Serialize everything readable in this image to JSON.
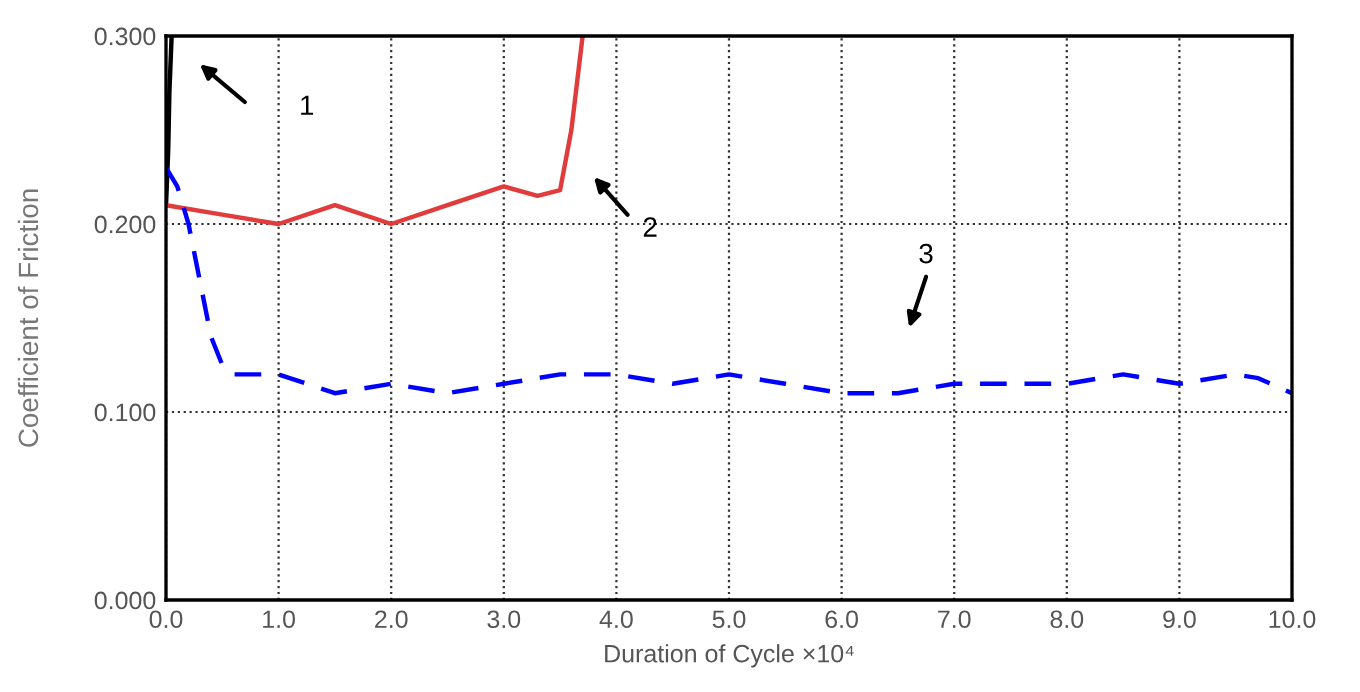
{
  "chart_data": {
    "type": "line",
    "xlabel": "Duration of Cycle ×10⁴",
    "ylabel": "Coefficient of Friction",
    "xlim": [
      0,
      10
    ],
    "ylim": [
      0,
      0.3
    ],
    "xticks": [
      {
        "value": 0,
        "label": "0.0"
      },
      {
        "value": 1,
        "label": "1.0"
      },
      {
        "value": 2,
        "label": "2.0"
      },
      {
        "value": 3,
        "label": "3.0"
      },
      {
        "value": 4,
        "label": "4.0"
      },
      {
        "value": 5,
        "label": "5.0"
      },
      {
        "value": 6,
        "label": "6.0"
      },
      {
        "value": 7,
        "label": "7.0"
      },
      {
        "value": 8,
        "label": "8.0"
      },
      {
        "value": 9,
        "label": "9.0"
      },
      {
        "value": 10,
        "label": "10.0"
      }
    ],
    "yticks": [
      {
        "value": 0,
        "label": "0.000"
      },
      {
        "value": 0.1,
        "label": "0.100"
      },
      {
        "value": 0.2,
        "label": "0.200"
      },
      {
        "value": 0.3,
        "label": "0.300"
      }
    ],
    "grid": true,
    "legend": false,
    "marker": "none",
    "series": [
      {
        "color": "#000000",
        "line_style": "solid",
        "x": [
          0,
          0.02,
          0.03,
          0.05
        ],
        "values": [
          0.21,
          0.24,
          0.27,
          0.3
        ]
      },
      {
        "color": "#e03c3c",
        "line_style": "solid",
        "x": [
          0,
          0.5,
          1.0,
          1.5,
          2.0,
          2.5,
          3.0,
          3.3,
          3.5,
          3.6,
          3.7
        ],
        "values": [
          0.21,
          0.205,
          0.2,
          0.21,
          0.2,
          0.21,
          0.22,
          0.215,
          0.218,
          0.25,
          0.3
        ]
      },
      {
        "color": "#0000ff",
        "line_style": "dashed",
        "x": [
          0,
          0.1,
          0.2,
          0.3,
          0.4,
          0.5,
          0.6,
          1.0,
          1.5,
          2.0,
          2.5,
          3.0,
          3.5,
          4.0,
          4.5,
          5.0,
          5.5,
          6.0,
          6.5,
          7.0,
          8.0,
          8.5,
          9.0,
          9.5,
          9.7,
          10
        ],
        "values": [
          0.23,
          0.22,
          0.2,
          0.17,
          0.14,
          0.125,
          0.12,
          0.12,
          0.11,
          0.115,
          0.11,
          0.115,
          0.12,
          0.12,
          0.115,
          0.12,
          0.115,
          0.11,
          0.11,
          0.115,
          0.115,
          0.12,
          0.115,
          0.12,
          0.118,
          0.11
        ]
      }
    ],
    "annotations": [
      "1",
      "2",
      "3"
    ]
  }
}
